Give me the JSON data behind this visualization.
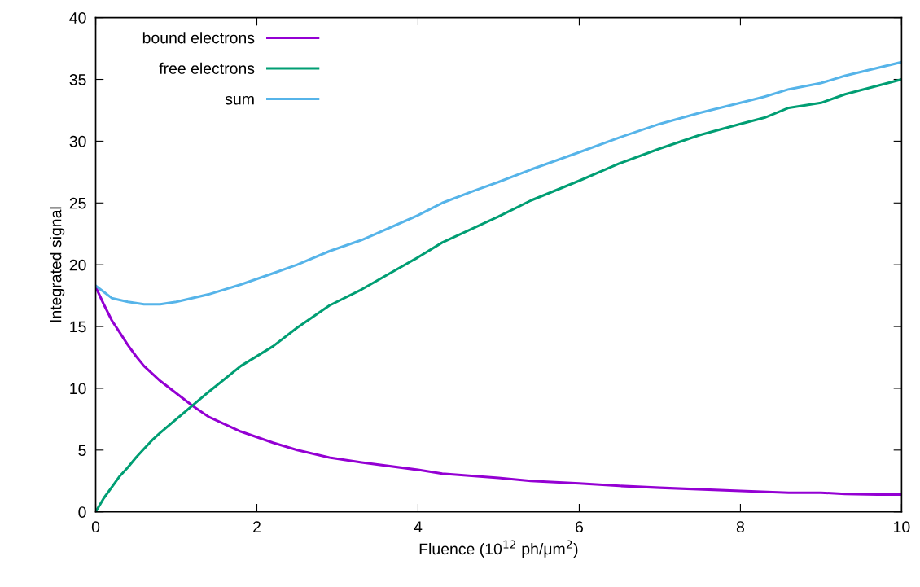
{
  "chart_data": {
    "type": "line",
    "xlabel": "Fluence (10$^{12}$ ph/μm$^{2}$)",
    "ylabel": "Integrated signal",
    "xlim": [
      0,
      10
    ],
    "ylim": [
      0,
      40
    ],
    "xticks": [
      0,
      2,
      4,
      6,
      8,
      10
    ],
    "yticks": [
      0,
      5,
      10,
      15,
      20,
      25,
      30,
      35,
      40
    ],
    "grid": false,
    "legend": "top left",
    "marker": "none",
    "line_style": "solid",
    "series": [
      {
        "name": "bound electrons",
        "color": "#9400d3",
        "x": [
          0,
          0.1,
          0.2,
          0.3,
          0.4,
          0.5,
          0.6,
          0.8,
          1.0,
          1.2,
          1.4,
          1.8,
          2.2,
          2.5,
          2.9,
          3.3,
          4,
          4.3,
          5,
          5.4,
          6,
          6.5,
          7,
          8,
          8.6,
          9,
          9.3,
          9.7,
          10
        ],
        "values": [
          18.2,
          16.8,
          15.5,
          14.5,
          13.5,
          12.6,
          11.8,
          10.6,
          9.6,
          8.6,
          7.7,
          6.5,
          5.6,
          5.0,
          4.4,
          4.0,
          3.4,
          3.1,
          2.75,
          2.5,
          2.3,
          2.1,
          1.95,
          1.7,
          1.55,
          1.55,
          1.45,
          1.4,
          1.4
        ]
      },
      {
        "name": "free electrons",
        "color": "#009e73",
        "x": [
          0,
          0.1,
          0.2,
          0.3,
          0.4,
          0.5,
          0.6,
          0.7,
          0.8,
          1.0,
          1.2,
          1.4,
          1.8,
          2.2,
          2.5,
          2.9,
          3.3,
          4,
          4.3,
          4.7,
          5,
          5.4,
          6,
          6.5,
          7,
          7.5,
          8,
          8.3,
          8.6,
          9,
          9.3,
          10
        ],
        "values": [
          0,
          1.1,
          2.0,
          2.9,
          3.6,
          4.4,
          5.1,
          5.8,
          6.4,
          7.5,
          8.6,
          9.7,
          11.8,
          13.4,
          14.9,
          16.7,
          18.0,
          20.6,
          21.8,
          23.0,
          23.9,
          25.2,
          26.8,
          28.2,
          29.4,
          30.5,
          31.4,
          31.9,
          32.7,
          33.1,
          33.8,
          35.0
        ]
      },
      {
        "name": "sum",
        "color": "#56b4e9",
        "x": [
          0,
          0.1,
          0.2,
          0.4,
          0.6,
          0.8,
          1.0,
          1.4,
          1.8,
          2.2,
          2.5,
          2.9,
          3.3,
          4,
          4.3,
          4.7,
          5,
          5.4,
          6,
          6.5,
          7,
          7.5,
          8,
          8.3,
          8.6,
          9,
          9.3,
          10
        ],
        "values": [
          18.3,
          17.8,
          17.3,
          17.0,
          16.8,
          16.8,
          17.0,
          17.6,
          18.4,
          19.3,
          20.0,
          21.1,
          22.0,
          24.0,
          25.0,
          26.0,
          26.7,
          27.7,
          29.1,
          30.3,
          31.4,
          32.3,
          33.1,
          33.6,
          34.2,
          34.7,
          35.3,
          36.4
        ]
      }
    ]
  }
}
